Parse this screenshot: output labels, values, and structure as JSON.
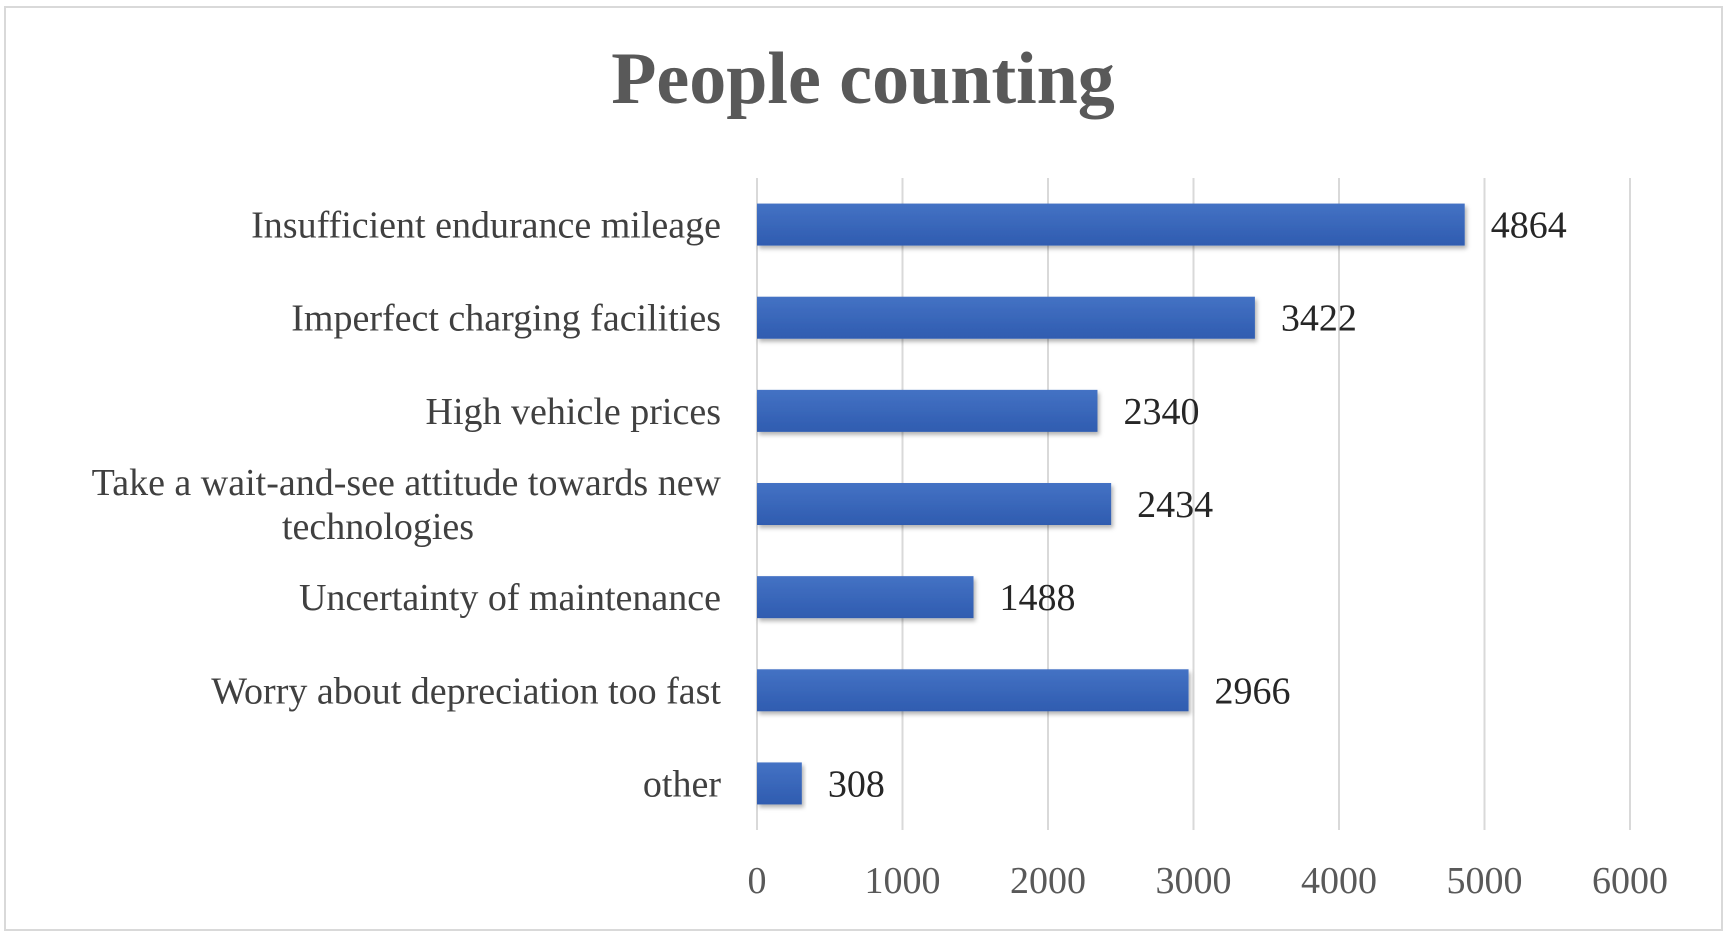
{
  "chart_data": {
    "type": "bar",
    "orientation": "horizontal",
    "title": "People counting",
    "categories": [
      [
        "Insufficient endurance mileage"
      ],
      [
        "Imperfect charging facilities"
      ],
      [
        "High vehicle prices"
      ],
      [
        "Take a wait-and-see attitude towards new",
        "technologies"
      ],
      [
        "Uncertainty of maintenance"
      ],
      [
        "Worry about depreciation too fast"
      ],
      [
        "other"
      ]
    ],
    "values": [
      4864,
      3422,
      2340,
      2434,
      1488,
      2966,
      308
    ],
    "xlim": [
      0,
      6000
    ],
    "xticks": [
      0,
      1000,
      2000,
      3000,
      4000,
      5000,
      6000
    ],
    "xlabel": "",
    "ylabel": "",
    "grid": true,
    "legend": "none",
    "bar_color": "#4472c4",
    "bar_color_dark": "#2f5cb0"
  }
}
